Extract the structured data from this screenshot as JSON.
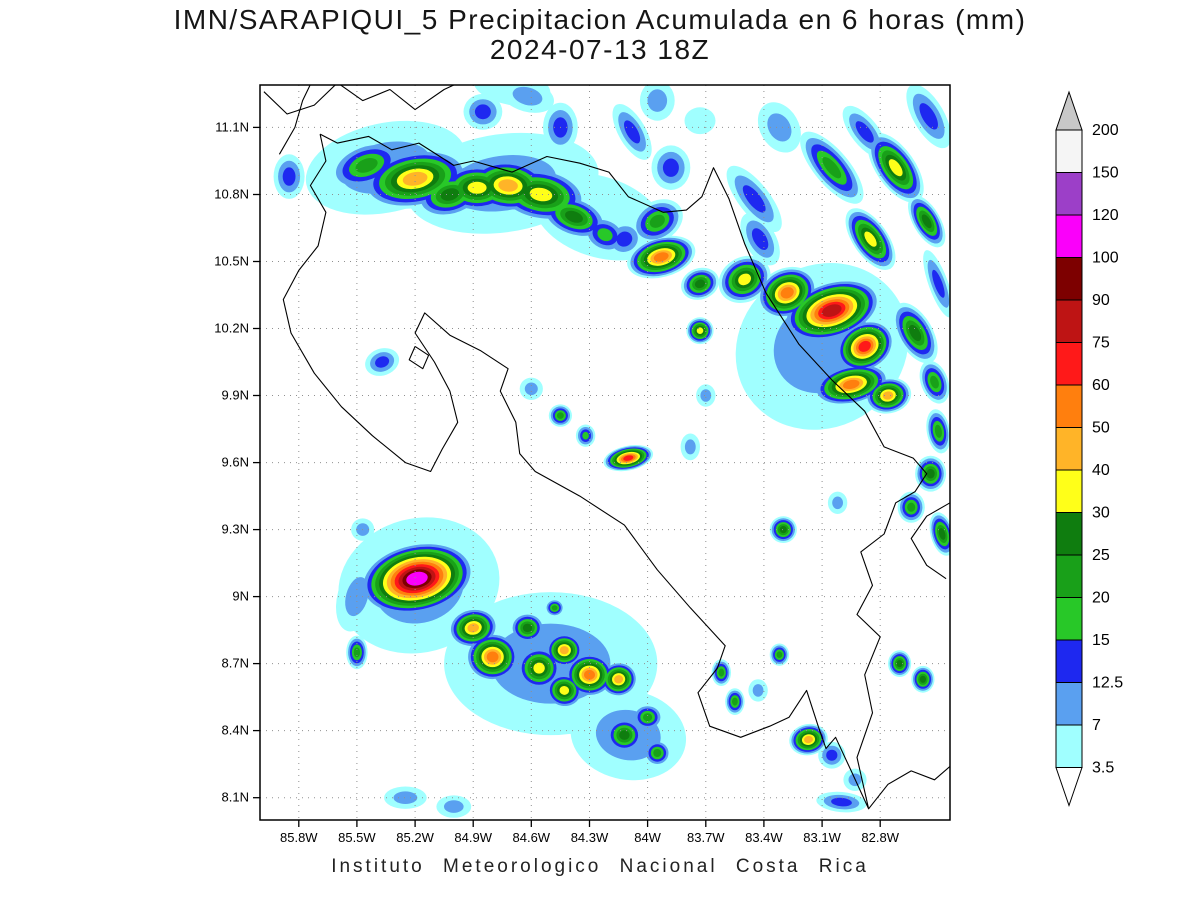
{
  "title": "IMN/SARAPIQUI_5 Precipitacion Acumulada en 6 horas (mm)",
  "subtitle": "2024-07-13 18Z",
  "footer": "Instituto Meteorologico Nacional Costa Rica",
  "chart_data": {
    "type": "heatmap",
    "variable": "Precipitacion Acumulada en 6 horas",
    "units": "mm",
    "model": "IMN/SARAPIQUI_5",
    "valid_time": "2024-07-13 18Z",
    "extent": {
      "lon_west": 86.0,
      "lon_east": 82.44,
      "lat_north": 11.29,
      "lat_south": 8.0
    },
    "lat_ticks": [
      {
        "value": 11.1,
        "label": "11.1N"
      },
      {
        "value": 10.8,
        "label": "10.8N"
      },
      {
        "value": 10.5,
        "label": "10.5N"
      },
      {
        "value": 10.2,
        "label": "10.2N"
      },
      {
        "value": 9.9,
        "label": "9.9N"
      },
      {
        "value": 9.6,
        "label": "9.6N"
      },
      {
        "value": 9.3,
        "label": "9.3N"
      },
      {
        "value": 9.0,
        "label": "9N"
      },
      {
        "value": 8.7,
        "label": "8.7N"
      },
      {
        "value": 8.4,
        "label": "8.4N"
      },
      {
        "value": 8.1,
        "label": "8.1N"
      }
    ],
    "lon_ticks": [
      {
        "value": 85.8,
        "label": "85.8W"
      },
      {
        "value": 85.5,
        "label": "85.5W"
      },
      {
        "value": 85.2,
        "label": "85.2W"
      },
      {
        "value": 84.9,
        "label": "84.9W"
      },
      {
        "value": 84.6,
        "label": "84.6W"
      },
      {
        "value": 84.3,
        "label": "84.3W"
      },
      {
        "value": 84.0,
        "label": "84W"
      },
      {
        "value": 83.7,
        "label": "83.7W"
      },
      {
        "value": 83.4,
        "label": "83.4W"
      },
      {
        "value": 83.1,
        "label": "83.1W"
      },
      {
        "value": 82.8,
        "label": "82.8W"
      }
    ],
    "levels": [
      3.5,
      7,
      12.5,
      15,
      20,
      25,
      30,
      40,
      50,
      60,
      75,
      90,
      100,
      120,
      150
    ],
    "level_colors": [
      "#A0FFFF",
      "#5AA0F0",
      "#1E28F0",
      "#28C828",
      "#19A019",
      "#0F7D0F",
      "#FFFF19",
      "#FFB428",
      "#FF7F0E",
      "#FF1919",
      "#BE1414",
      "#7D0000",
      "#FA00FA",
      "#9C3FC8",
      "#F5F5F5"
    ],
    "colorbar": {
      "labels": [
        "200",
        "150",
        "120",
        "100",
        "90",
        "75",
        "60",
        "50",
        "40",
        "30",
        "25",
        "20",
        "15",
        "12.5",
        "7",
        "3.5"
      ],
      "over_color": "#C8C8C8",
      "under_color": "#FFFFFF"
    },
    "cells_format": [
      "lon_w",
      "lat_n",
      "max_level_mm",
      "rx_deg",
      "ry_deg",
      "rot_deg"
    ],
    "cells": [
      [
        85.35,
        10.92,
        7,
        0.42,
        0.2,
        -12
      ],
      [
        84.75,
        10.85,
        7,
        0.5,
        0.22,
        -8
      ],
      [
        84.25,
        10.7,
        3.5,
        0.35,
        0.18,
        18
      ],
      [
        83.1,
        10.12,
        7,
        0.46,
        0.36,
        -35
      ],
      [
        85.18,
        9.05,
        7,
        0.42,
        0.3,
        -15
      ],
      [
        84.5,
        8.7,
        7,
        0.55,
        0.32,
        0
      ],
      [
        84.1,
        8.38,
        7,
        0.3,
        0.2,
        10
      ],
      [
        85.45,
        10.93,
        20,
        0.2,
        0.1,
        -20
      ],
      [
        85.2,
        10.87,
        40,
        0.28,
        0.13,
        -10
      ],
      [
        85.02,
        10.8,
        25,
        0.18,
        0.1,
        -15
      ],
      [
        84.88,
        10.83,
        30,
        0.2,
        0.11,
        0
      ],
      [
        84.72,
        10.84,
        40,
        0.22,
        0.12,
        5
      ],
      [
        84.55,
        10.8,
        30,
        0.24,
        0.12,
        10
      ],
      [
        84.38,
        10.7,
        25,
        0.18,
        0.09,
        20
      ],
      [
        84.22,
        10.62,
        15,
        0.12,
        0.08,
        25
      ],
      [
        83.95,
        10.68,
        20,
        0.14,
        0.09,
        -30
      ],
      [
        84.12,
        10.6,
        12.5,
        0.1,
        0.08,
        -30
      ],
      [
        84.85,
        11.17,
        12.5,
        0.1,
        0.08,
        0
      ],
      [
        84.62,
        11.24,
        7,
        0.14,
        0.07,
        15
      ],
      [
        84.45,
        11.1,
        12.5,
        0.09,
        0.11,
        0
      ],
      [
        84.7,
        11.28,
        3.5,
        0.2,
        0.08,
        10
      ],
      [
        84.08,
        11.08,
        12.5,
        0.07,
        0.14,
        -30
      ],
      [
        83.95,
        11.22,
        7,
        0.09,
        0.09,
        0
      ],
      [
        83.88,
        10.92,
        12.5,
        0.1,
        0.1,
        0
      ],
      [
        83.73,
        11.13,
        3.5,
        0.08,
        0.06,
        0
      ],
      [
        83.32,
        11.1,
        7,
        0.1,
        0.12,
        -30
      ],
      [
        82.55,
        11.15,
        12.5,
        0.08,
        0.16,
        -30
      ],
      [
        83.45,
        10.78,
        12.5,
        0.08,
        0.18,
        -38
      ],
      [
        83.42,
        10.6,
        12.5,
        0.08,
        0.13,
        -30
      ],
      [
        83.05,
        10.92,
        20,
        0.09,
        0.2,
        -40
      ],
      [
        82.88,
        11.08,
        12.5,
        0.07,
        0.14,
        -38
      ],
      [
        82.72,
        10.92,
        30,
        0.1,
        0.18,
        -35
      ],
      [
        82.85,
        10.6,
        30,
        0.09,
        0.16,
        -35
      ],
      [
        82.56,
        10.68,
        25,
        0.07,
        0.13,
        -30
      ],
      [
        82.5,
        10.4,
        12.5,
        0.05,
        0.16,
        -20
      ],
      [
        83.93,
        10.52,
        50,
        0.18,
        0.09,
        -15
      ],
      [
        83.73,
        10.4,
        25,
        0.1,
        0.07,
        -20
      ],
      [
        83.73,
        10.19,
        30,
        0.07,
        0.06,
        0
      ],
      [
        83.5,
        10.42,
        30,
        0.14,
        0.1,
        -30
      ],
      [
        83.28,
        10.36,
        50,
        0.16,
        0.11,
        -25
      ],
      [
        83.05,
        10.28,
        75,
        0.26,
        0.13,
        -18
      ],
      [
        82.88,
        10.12,
        60,
        0.16,
        0.11,
        -30
      ],
      [
        82.95,
        9.95,
        50,
        0.2,
        0.09,
        -12
      ],
      [
        82.76,
        9.9,
        40,
        0.12,
        0.08,
        -10
      ],
      [
        82.62,
        10.18,
        25,
        0.09,
        0.15,
        -30
      ],
      [
        82.52,
        9.96,
        20,
        0.07,
        0.1,
        -20
      ],
      [
        82.5,
        9.74,
        20,
        0.06,
        0.1,
        -10
      ],
      [
        82.54,
        9.55,
        25,
        0.08,
        0.08,
        0
      ],
      [
        82.64,
        9.4,
        20,
        0.07,
        0.07,
        0
      ],
      [
        82.48,
        9.28,
        25,
        0.06,
        0.1,
        -15
      ],
      [
        85.37,
        10.05,
        12.5,
        0.09,
        0.06,
        -20
      ],
      [
        85.47,
        9.3,
        7,
        0.06,
        0.05,
        0
      ],
      [
        84.6,
        9.93,
        7,
        0.06,
        0.05,
        0
      ],
      [
        84.45,
        9.81,
        20,
        0.06,
        0.05,
        0
      ],
      [
        84.32,
        9.72,
        15,
        0.05,
        0.05,
        0
      ],
      [
        84.1,
        9.62,
        60,
        0.13,
        0.055,
        -12
      ],
      [
        83.78,
        9.67,
        7,
        0.05,
        0.06,
        0
      ],
      [
        83.7,
        9.9,
        7,
        0.05,
        0.05,
        0
      ],
      [
        83.3,
        9.3,
        25,
        0.07,
        0.06,
        0
      ],
      [
        83.02,
        9.42,
        7,
        0.05,
        0.05,
        0
      ],
      [
        85.19,
        9.08,
        100,
        0.3,
        0.16,
        -12
      ],
      [
        85.5,
        9.0,
        7,
        0.1,
        0.16,
        15
      ],
      [
        85.5,
        8.75,
        20,
        0.055,
        0.075,
        0
      ],
      [
        84.9,
        8.86,
        40,
        0.13,
        0.09,
        -10
      ],
      [
        84.8,
        8.73,
        50,
        0.14,
        0.11,
        0
      ],
      [
        84.62,
        8.86,
        25,
        0.09,
        0.07,
        0
      ],
      [
        84.56,
        8.68,
        30,
        0.12,
        0.1,
        0
      ],
      [
        84.43,
        8.76,
        40,
        0.1,
        0.08,
        0
      ],
      [
        84.43,
        8.58,
        30,
        0.1,
        0.08,
        10
      ],
      [
        84.3,
        8.65,
        50,
        0.13,
        0.1,
        0
      ],
      [
        84.15,
        8.63,
        40,
        0.1,
        0.08,
        -10
      ],
      [
        84.48,
        8.95,
        20,
        0.05,
        0.04,
        0
      ],
      [
        84.12,
        8.38,
        25,
        0.1,
        0.08,
        0
      ],
      [
        84.0,
        8.46,
        20,
        0.08,
        0.06,
        0
      ],
      [
        83.95,
        8.3,
        20,
        0.07,
        0.06,
        0
      ],
      [
        83.62,
        8.66,
        20,
        0.05,
        0.06,
        0
      ],
      [
        83.55,
        8.53,
        20,
        0.05,
        0.06,
        0
      ],
      [
        83.43,
        8.58,
        7,
        0.05,
        0.05,
        0
      ],
      [
        83.32,
        8.74,
        20,
        0.05,
        0.05,
        0
      ],
      [
        83.17,
        8.36,
        40,
        0.1,
        0.07,
        -10
      ],
      [
        83.05,
        8.29,
        12.5,
        0.07,
        0.06,
        0
      ],
      [
        82.93,
        8.18,
        7,
        0.06,
        0.05,
        0
      ],
      [
        83.0,
        8.08,
        12.5,
        0.13,
        0.045,
        5
      ],
      [
        82.7,
        8.7,
        25,
        0.06,
        0.06,
        0
      ],
      [
        82.58,
        8.63,
        25,
        0.06,
        0.06,
        0
      ],
      [
        85.25,
        8.1,
        7,
        0.11,
        0.05,
        0
      ],
      [
        85.0,
        8.06,
        7,
        0.09,
        0.05,
        0
      ],
      [
        85.85,
        10.88,
        12.5,
        0.08,
        0.1,
        0
      ]
    ],
    "coastlines": [
      [
        [
          85.69,
          11.07
        ],
        [
          85.6,
          11.03
        ],
        [
          85.44,
          11.06
        ],
        [
          85.32,
          11.0
        ],
        [
          85.18,
          11.03
        ],
        [
          85.0,
          10.93
        ],
        [
          84.9,
          10.95
        ],
        [
          84.7,
          10.9
        ],
        [
          84.52,
          10.97
        ],
        [
          84.35,
          10.94
        ],
        [
          84.2,
          10.9
        ],
        [
          84.1,
          10.79
        ],
        [
          83.92,
          10.72
        ],
        [
          83.8,
          10.73
        ],
        [
          83.72,
          10.79
        ],
        [
          83.66,
          10.92
        ],
        [
          83.58,
          10.78
        ],
        [
          83.5,
          10.58
        ],
        [
          83.39,
          10.36
        ],
        [
          83.22,
          10.13
        ],
        [
          83.05,
          9.97
        ],
        [
          82.88,
          9.83
        ],
        [
          82.78,
          9.67
        ],
        [
          82.63,
          9.62
        ],
        [
          82.56,
          9.55
        ],
        [
          82.62,
          9.47
        ],
        [
          82.72,
          9.42
        ],
        [
          82.78,
          9.28
        ],
        [
          82.9,
          9.2
        ],
        [
          82.84,
          9.05
        ],
        [
          82.92,
          8.92
        ],
        [
          82.8,
          8.82
        ],
        [
          82.88,
          8.65
        ],
        [
          82.84,
          8.48
        ],
        [
          82.92,
          8.28
        ],
        [
          82.86,
          8.05
        ],
        [
          82.95,
          8.22
        ],
        [
          83.03,
          8.37
        ],
        [
          83.08,
          8.32
        ],
        [
          83.12,
          8.42
        ],
        [
          83.18,
          8.58
        ],
        [
          83.27,
          8.46
        ],
        [
          83.37,
          8.42
        ],
        [
          83.52,
          8.37
        ],
        [
          83.68,
          8.42
        ],
        [
          83.74,
          8.57
        ],
        [
          83.64,
          8.68
        ],
        [
          83.6,
          8.78
        ],
        [
          83.78,
          8.95
        ],
        [
          83.95,
          9.12
        ],
        [
          84.12,
          9.32
        ],
        [
          84.35,
          9.45
        ],
        [
          84.58,
          9.56
        ],
        [
          84.66,
          9.64
        ],
        [
          84.68,
          9.78
        ],
        [
          84.76,
          9.92
        ],
        [
          84.72,
          10.02
        ],
        [
          84.86,
          10.1
        ],
        [
          85.02,
          10.17
        ],
        [
          85.15,
          10.27
        ],
        [
          85.2,
          10.18
        ],
        [
          85.1,
          10.05
        ],
        [
          85.02,
          9.92
        ],
        [
          84.98,
          9.78
        ],
        [
          85.06,
          9.66
        ],
        [
          85.12,
          9.56
        ],
        [
          85.25,
          9.6
        ],
        [
          85.42,
          9.72
        ],
        [
          85.58,
          9.85
        ],
        [
          85.72,
          10.0
        ],
        [
          85.84,
          10.18
        ],
        [
          85.88,
          10.33
        ],
        [
          85.8,
          10.46
        ],
        [
          85.7,
          10.57
        ],
        [
          85.66,
          10.72
        ],
        [
          85.74,
          10.84
        ],
        [
          85.66,
          10.95
        ],
        [
          85.69,
          11.07
        ]
      ],
      [
        [
          85.98,
          11.26
        ],
        [
          85.86,
          11.16
        ],
        [
          85.72,
          11.2
        ],
        [
          85.6,
          11.3
        ],
        [
          85.47,
          11.22
        ],
        [
          85.33,
          11.27
        ],
        [
          85.2,
          11.18
        ],
        [
          85.05,
          11.27
        ],
        [
          84.95,
          11.31
        ]
      ],
      [
        [
          85.9,
          10.98
        ],
        [
          85.82,
          11.1
        ],
        [
          85.78,
          11.22
        ],
        [
          85.73,
          11.31
        ]
      ],
      [
        [
          82.44,
          9.42
        ],
        [
          82.56,
          9.36
        ],
        [
          82.64,
          9.26
        ],
        [
          82.56,
          9.14
        ],
        [
          82.46,
          9.08
        ]
      ],
      [
        [
          82.86,
          8.05
        ],
        [
          82.76,
          8.16
        ],
        [
          82.64,
          8.22
        ],
        [
          82.52,
          8.18
        ],
        [
          82.44,
          8.24
        ]
      ],
      [
        [
          85.2,
          10.12
        ],
        [
          85.13,
          10.08
        ],
        [
          85.16,
          10.02
        ],
        [
          85.23,
          10.06
        ],
        [
          85.2,
          10.12
        ]
      ]
    ]
  }
}
